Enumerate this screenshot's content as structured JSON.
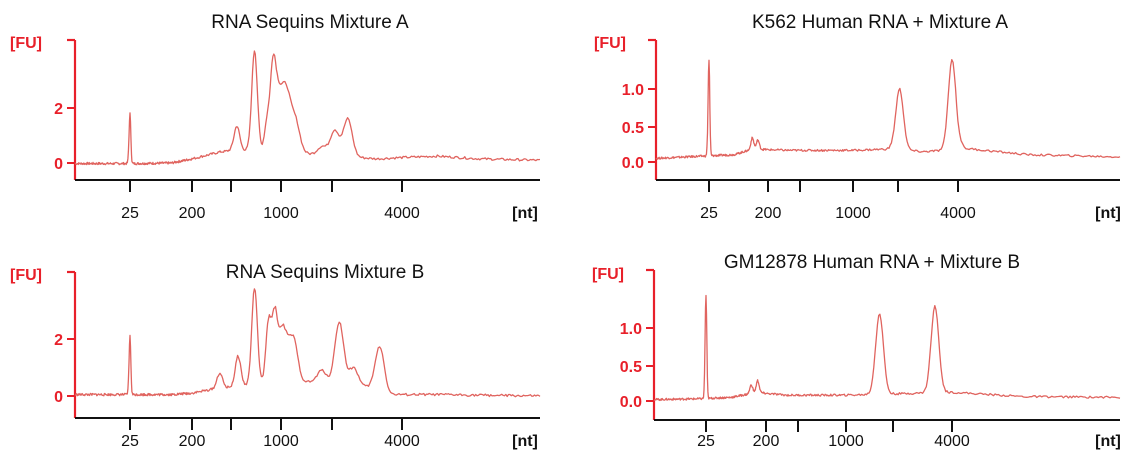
{
  "colors": {
    "trace": "#e0645f",
    "axis_red": "#e8202a",
    "axis_black": "#111111"
  },
  "chart_data": [
    {
      "type": "line",
      "title": "RNA Sequins Mixture A",
      "ylabel": "[FU]",
      "xlabel": "[nt]",
      "yticks": [
        "0",
        "2"
      ],
      "ytick_values": [
        0,
        2
      ],
      "xticks": [
        "25",
        "200",
        "1000",
        "4000"
      ],
      "xtick_values": [
        25,
        200,
        1000,
        4000
      ],
      "xlim": [
        5,
        20000
      ],
      "ylim": [
        -0.35,
        4.4
      ],
      "baseline": [
        [
          5,
          -0.02
        ],
        [
          30,
          -0.02
        ],
        [
          100,
          0.0
        ],
        [
          200,
          0.15
        ],
        [
          300,
          0.35
        ],
        [
          450,
          0.5
        ],
        [
          700,
          0.4
        ],
        [
          1000,
          0.4
        ],
        [
          2000,
          0.25
        ],
        [
          3000,
          0.15
        ],
        [
          4000,
          0.2
        ],
        [
          6000,
          0.25
        ],
        [
          10000,
          0.15
        ],
        [
          20000,
          0.1
        ]
      ],
      "peaks": [
        {
          "x": 25,
          "y": 1.8
        },
        {
          "x": 330,
          "y": 0.4
        },
        {
          "x": 450,
          "y": 1.35
        },
        {
          "x": 620,
          "y": 4.1
        },
        {
          "x": 780,
          "y": 1.5
        },
        {
          "x": 870,
          "y": 3.6
        },
        {
          "x": 960,
          "y": 2.2
        },
        {
          "x": 1060,
          "y": 2.5
        },
        {
          "x": 1180,
          "y": 1.5
        },
        {
          "x": 1600,
          "y": 0.6
        },
        {
          "x": 1850,
          "y": 1.2
        },
        {
          "x": 2150,
          "y": 1.6
        }
      ]
    },
    {
      "type": "line",
      "title": "K562 Human RNA + Mixture A",
      "ylabel": "[FU]",
      "xlabel": "[nt]",
      "yticks": [
        "0.0",
        "0.5",
        "1.0"
      ],
      "ytick_values": [
        0.0,
        0.5,
        1.0
      ],
      "xticks": [
        "25",
        "200",
        "1000",
        "4000"
      ],
      "xtick_values": [
        25,
        200,
        1000,
        4000
      ],
      "xlim": [
        5,
        20000
      ],
      "ylim": [
        -0.06,
        1.48
      ],
      "baseline": [
        [
          5,
          0.05
        ],
        [
          20,
          0.08
        ],
        [
          60,
          0.1
        ],
        [
          120,
          0.18
        ],
        [
          300,
          0.16
        ],
        [
          1000,
          0.16
        ],
        [
          1700,
          0.18
        ],
        [
          2500,
          0.14
        ],
        [
          4500,
          0.18
        ],
        [
          8000,
          0.1
        ],
        [
          20000,
          0.07
        ]
      ],
      "peaks": [
        {
          "x": 25,
          "y": 1.4
        },
        {
          "x": 115,
          "y": 0.33
        },
        {
          "x": 140,
          "y": 0.3
        },
        {
          "x": 1850,
          "y": 1.0
        },
        {
          "x": 3700,
          "y": 1.4
        }
      ]
    },
    {
      "type": "line",
      "title": "RNA Sequins Mixture B",
      "ylabel": "[FU]",
      "xlabel": "[nt]",
      "yticks": [
        "0",
        "2"
      ],
      "ytick_values": [
        0,
        2
      ],
      "xticks": [
        "25",
        "200",
        "1000",
        "4000"
      ],
      "xtick_values": [
        25,
        200,
        1000,
        4000
      ],
      "xlim": [
        5,
        20000
      ],
      "ylim": [
        -0.25,
        4.4
      ],
      "baseline": [
        [
          5,
          0.05
        ],
        [
          30,
          0.05
        ],
        [
          100,
          0.05
        ],
        [
          200,
          0.1
        ],
        [
          300,
          0.25
        ],
        [
          500,
          0.35
        ],
        [
          1000,
          0.45
        ],
        [
          1500,
          0.5
        ],
        [
          2000,
          0.4
        ],
        [
          2800,
          0.3
        ],
        [
          3500,
          0.05
        ],
        [
          6000,
          0.05
        ],
        [
          20000,
          0.0
        ]
      ],
      "peaks": [
        {
          "x": 25,
          "y": 2.1
        },
        {
          "x": 330,
          "y": 0.8
        },
        {
          "x": 460,
          "y": 1.4
        },
        {
          "x": 620,
          "y": 3.8
        },
        {
          "x": 800,
          "y": 2.6
        },
        {
          "x": 900,
          "y": 2.9
        },
        {
          "x": 1020,
          "y": 2.3
        },
        {
          "x": 1150,
          "y": 2.0
        },
        {
          "x": 1600,
          "y": 0.9
        },
        {
          "x": 1950,
          "y": 2.6
        },
        {
          "x": 2300,
          "y": 1.0
        },
        {
          "x": 3100,
          "y": 1.75
        }
      ]
    },
    {
      "type": "line",
      "title": "GM12878 Human RNA + Mixture B",
      "ylabel": "[FU]",
      "xlabel": "[nt]",
      "yticks": [
        "0.0",
        "0.5",
        "1.0"
      ],
      "ytick_values": [
        0.0,
        0.5,
        1.0
      ],
      "xticks": [
        "25",
        "200",
        "1000",
        "4000"
      ],
      "xtick_values": [
        25,
        200,
        1000,
        4000
      ],
      "xlim": [
        5,
        20000
      ],
      "ylim": [
        -0.06,
        1.48
      ],
      "baseline": [
        [
          5,
          0.02
        ],
        [
          20,
          0.03
        ],
        [
          60,
          0.05
        ],
        [
          150,
          0.12
        ],
        [
          300,
          0.08
        ],
        [
          1000,
          0.08
        ],
        [
          2000,
          0.1
        ],
        [
          4000,
          0.12
        ],
        [
          8000,
          0.06
        ],
        [
          20000,
          0.05
        ]
      ],
      "peaks": [
        {
          "x": 25,
          "y": 1.45
        },
        {
          "x": 120,
          "y": 0.22
        },
        {
          "x": 150,
          "y": 0.28
        },
        {
          "x": 1550,
          "y": 1.2
        },
        {
          "x": 3200,
          "y": 1.3
        }
      ]
    }
  ]
}
